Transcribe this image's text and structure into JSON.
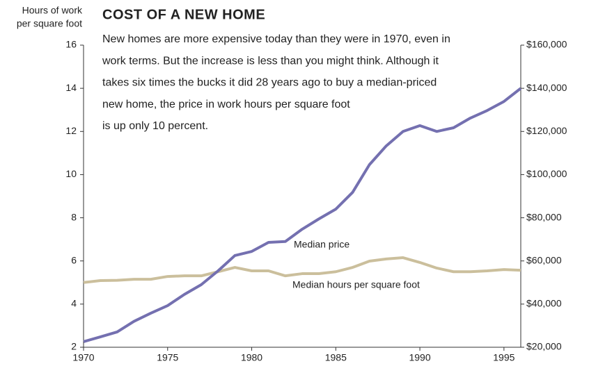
{
  "chart_data": {
    "type": "line",
    "title": "COST OF A NEW HOME",
    "subtitle_lines": [
      "New homes are more expensive today than they were in 1970, even in",
      "work terms. But the increase is less than you might think. Although it",
      "takes six times the bucks it did 28 years ago to buy a median-priced",
      "new home, the price in work hours per square foot",
      "is up only 10 percent."
    ],
    "y_label_lines": [
      "Hours of work",
      "per square foot"
    ],
    "annotations": [
      "Median price",
      "Median hours per square foot"
    ],
    "x": [
      1970,
      1971,
      1972,
      1973,
      1974,
      1975,
      1976,
      1977,
      1978,
      1979,
      1980,
      1981,
      1982,
      1983,
      1984,
      1985,
      1986,
      1987,
      1988,
      1989,
      1990,
      1991,
      1992,
      1993,
      1994,
      1995,
      1996
    ],
    "series": [
      {
        "name": "Median hours per square foot",
        "color": "#cbbf9c",
        "values": [
          5.0,
          5.09,
          5.1,
          5.15,
          5.15,
          5.28,
          5.31,
          5.31,
          5.5,
          5.7,
          5.54,
          5.54,
          5.31,
          5.41,
          5.41,
          5.5,
          5.7,
          5.99,
          6.09,
          6.15,
          5.93,
          5.67,
          5.5,
          5.5,
          5.54,
          5.6,
          5.57
        ]
      },
      {
        "name": "Median price",
        "color": "#7470b0",
        "axis": "y2",
        "values": [
          22600,
          24800,
          27100,
          32000,
          35800,
          39300,
          44500,
          49000,
          55400,
          62500,
          64400,
          68600,
          69000,
          74700,
          79500,
          84000,
          91800,
          104600,
          113300,
          120000,
          122700,
          120000,
          121700,
          126200,
          129700,
          133900,
          140000
        ]
      }
    ],
    "xlim": [
      1970,
      1996
    ],
    "xticks": [
      1970,
      1975,
      1980,
      1985,
      1990,
      1995
    ],
    "ylim": [
      2,
      16
    ],
    "yticks": [
      2,
      4,
      6,
      8,
      10,
      12,
      14,
      16
    ],
    "y2lim": [
      20000,
      160000
    ],
    "y2ticks": [
      {
        "value": 20000,
        "label": "$20,000"
      },
      {
        "value": 40000,
        "label": "$40,000"
      },
      {
        "value": 60000,
        "label": "$60,000"
      },
      {
        "value": 80000,
        "label": "$80,000"
      },
      {
        "value": 100000,
        "label": "$100,000"
      },
      {
        "value": 120000,
        "label": "$120,000"
      },
      {
        "value": 140000,
        "label": "$140,000"
      },
      {
        "value": 160000,
        "label": "$160,000"
      }
    ],
    "grid": false
  }
}
